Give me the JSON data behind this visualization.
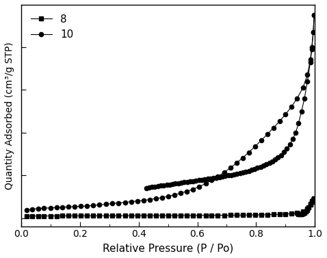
{
  "xlabel": "Relative Pressure (P / Po)",
  "ylabel": "Quantity Adsorbed (cm³/g STP)",
  "xlim": [
    0.0,
    1.0
  ],
  "legend_labels": [
    "8",
    "10"
  ],
  "background_color": "#ffffff",
  "line_color": "#000000",
  "series_8_adsorption_x": [
    0.017,
    0.036,
    0.057,
    0.075,
    0.099,
    0.12,
    0.14,
    0.161,
    0.181,
    0.203,
    0.224,
    0.245,
    0.266,
    0.288,
    0.309,
    0.33,
    0.353,
    0.374,
    0.395,
    0.416,
    0.437,
    0.458,
    0.479,
    0.5,
    0.521,
    0.543,
    0.563,
    0.584,
    0.606,
    0.628,
    0.648,
    0.669,
    0.691,
    0.712,
    0.733,
    0.754,
    0.775,
    0.796,
    0.817,
    0.838,
    0.859,
    0.88,
    0.9,
    0.92,
    0.94,
    0.96,
    0.975,
    0.985,
    0.99,
    0.995,
    0.998
  ],
  "series_8_adsorption_y": [
    1.0,
    1.05,
    1.08,
    1.1,
    1.12,
    1.13,
    1.14,
    1.15,
    1.16,
    1.17,
    1.18,
    1.19,
    1.2,
    1.21,
    1.22,
    1.22,
    1.23,
    1.24,
    1.25,
    1.26,
    1.27,
    1.28,
    1.29,
    1.3,
    1.31,
    1.32,
    1.33,
    1.34,
    1.36,
    1.38,
    1.4,
    1.42,
    1.44,
    1.46,
    1.49,
    1.52,
    1.56,
    1.6,
    1.65,
    1.7,
    1.78,
    1.88,
    2.0,
    2.18,
    2.55,
    3.2,
    4.6,
    6.8,
    8.0,
    8.8,
    9.2
  ],
  "series_8_desorption_x": [
    0.998,
    0.995,
    0.99,
    0.985,
    0.98,
    0.975,
    0.97,
    0.965,
    0.96,
    0.955,
    0.95,
    0.945
  ],
  "series_8_desorption_y": [
    9.2,
    8.8,
    7.8,
    6.4,
    5.2,
    4.0,
    3.2,
    2.7,
    2.3,
    2.05,
    1.9,
    1.78
  ],
  "series_10_adsorption_x": [
    0.017,
    0.036,
    0.057,
    0.075,
    0.099,
    0.12,
    0.14,
    0.161,
    0.181,
    0.203,
    0.224,
    0.245,
    0.266,
    0.288,
    0.309,
    0.33,
    0.353,
    0.374,
    0.395,
    0.416,
    0.437,
    0.458,
    0.479,
    0.5,
    0.521,
    0.543,
    0.563,
    0.584,
    0.606,
    0.628,
    0.648,
    0.669,
    0.691,
    0.712,
    0.733,
    0.754,
    0.775,
    0.796,
    0.817,
    0.838,
    0.859,
    0.88,
    0.9,
    0.92,
    0.94,
    0.96,
    0.975,
    0.985,
    0.99,
    0.995,
    0.998
  ],
  "series_10_adsorption_y": [
    4.0,
    4.3,
    4.6,
    4.75,
    4.9,
    5.05,
    5.2,
    5.35,
    5.5,
    5.65,
    5.8,
    6.0,
    6.3,
    6.6,
    6.9,
    7.2,
    7.5,
    7.8,
    8.1,
    8.4,
    8.8,
    9.2,
    9.7,
    10.3,
    11.0,
    11.8,
    12.6,
    13.5,
    14.8,
    16.2,
    17.8,
    19.5,
    21.5,
    23.5,
    25.8,
    28.2,
    30.8,
    33.5,
    36.3,
    39.2,
    42.2,
    45.3,
    48.5,
    52.0,
    56.0,
    61.0,
    67.0,
    74.0,
    80.0,
    87.0,
    95.0
  ],
  "series_10_desorption_x": [
    0.998,
    0.995,
    0.99,
    0.985,
    0.975,
    0.965,
    0.955,
    0.945,
    0.935,
    0.925,
    0.915,
    0.905,
    0.895,
    0.885,
    0.875,
    0.865,
    0.855,
    0.845,
    0.835,
    0.825,
    0.815,
    0.805,
    0.795,
    0.785,
    0.775,
    0.765,
    0.755,
    0.745,
    0.735,
    0.725,
    0.715,
    0.705,
    0.695,
    0.685,
    0.675,
    0.665,
    0.655,
    0.645,
    0.635,
    0.625,
    0.615,
    0.605,
    0.595,
    0.585,
    0.575,
    0.565,
    0.555,
    0.545,
    0.535,
    0.525,
    0.515,
    0.505,
    0.495,
    0.485,
    0.475,
    0.465,
    0.455,
    0.445,
    0.435,
    0.425
  ],
  "series_10_desorption_y": [
    95.0,
    87.0,
    79.0,
    73.0,
    64.0,
    56.0,
    50.0,
    44.5,
    40.0,
    37.0,
    34.5,
    32.5,
    31.0,
    29.5,
    28.5,
    27.5,
    26.5,
    25.8,
    25.2,
    24.6,
    24.0,
    23.5,
    23.0,
    22.6,
    22.2,
    21.8,
    21.5,
    21.2,
    20.9,
    20.6,
    20.3,
    20.0,
    19.7,
    19.4,
    19.2,
    19.0,
    18.8,
    18.6,
    18.4,
    18.2,
    18.0,
    17.8,
    17.6,
    17.4,
    17.2,
    17.0,
    16.8,
    16.6,
    16.4,
    16.2,
    16.0,
    15.8,
    15.6,
    15.4,
    15.2,
    15.0,
    14.8,
    14.6,
    14.4,
    14.2
  ]
}
